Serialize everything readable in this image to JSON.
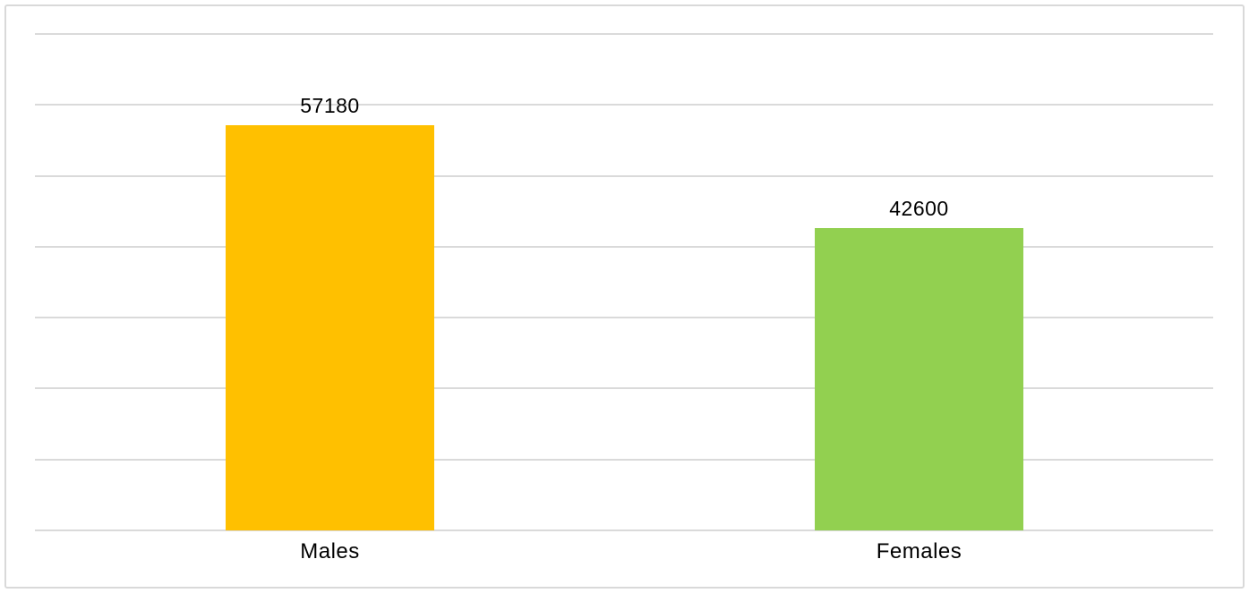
{
  "chart_data": {
    "type": "bar",
    "categories": [
      "Males",
      "Females"
    ],
    "values": [
      57180,
      42600
    ],
    "data_labels": [
      "57180",
      "42600"
    ],
    "colors": [
      "#FFC000",
      "#92D050"
    ],
    "title": "",
    "xlabel": "",
    "ylabel": "",
    "ylim": [
      0,
      70000
    ],
    "gridline_interval": 10000,
    "grid": "horizontal",
    "y_tick_labels_visible": false,
    "legend": "none"
  },
  "colors": {
    "bar_males": "#FFC000",
    "bar_females": "#92D050",
    "gridline": "#DADADA",
    "frame_border": "#D9D9D9",
    "text": "#000000",
    "background": "#FFFFFF"
  }
}
